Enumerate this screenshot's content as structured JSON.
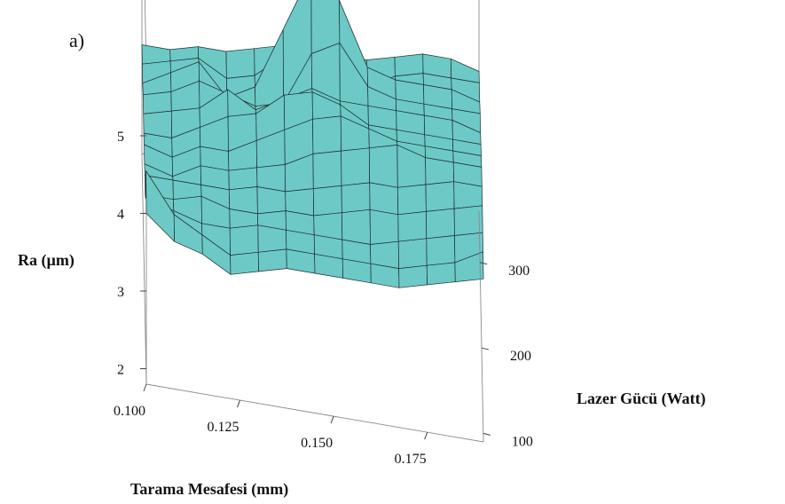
{
  "chart_data": {
    "type": "surface",
    "panel_label": "a)",
    "xlabel": "Tarama Mesafesi (mm)",
    "ylabel": "Lazer Gücü (Watt)",
    "zlabel": "Ra (µm)",
    "x_ticks": [
      "0.100",
      "0.125",
      "0.150",
      "0.175"
    ],
    "y_ticks": [
      "100",
      "200",
      "300"
    ],
    "z_ticks": [
      "2",
      "3",
      "4",
      "5"
    ],
    "x_range": [
      0.1,
      0.19
    ],
    "y_range": [
      90,
      360
    ],
    "z_range": [
      1.8,
      5.8
    ],
    "x": [
      0.1,
      0.1075,
      0.115,
      0.1225,
      0.13,
      0.1375,
      0.145,
      0.1525,
      0.16,
      0.1675,
      0.175,
      0.1825,
      0.19
    ],
    "y": [
      90,
      112.5,
      135,
      157.5,
      180,
      202.5,
      225,
      247.5,
      270,
      292.5,
      315,
      337.5,
      360
    ],
    "z": [
      [
        4.0,
        3.7,
        3.6,
        3.4,
        3.5,
        3.6,
        3.6,
        3.6,
        3.6,
        3.6,
        3.7,
        3.8,
        3.9
      ],
      [
        4.3,
        3.8,
        3.6,
        3.4,
        3.5,
        3.6,
        3.6,
        3.6,
        3.6,
        3.6,
        3.7,
        3.8,
        4.0
      ],
      [
        3.7,
        3.6,
        3.5,
        3.5,
        3.6,
        3.6,
        3.6,
        3.6,
        3.6,
        3.7,
        3.8,
        3.9,
        4.0
      ],
      [
        3.5,
        3.5,
        3.6,
        3.5,
        3.5,
        3.6,
        3.6,
        3.7,
        3.8,
        3.8,
        3.9,
        4.0,
        4.1
      ],
      [
        3.5,
        3.5,
        3.5,
        3.5,
        3.6,
        3.6,
        3.7,
        3.8,
        3.9,
        3.9,
        4.0,
        4.1,
        4.1
      ],
      [
        3.4,
        3.3,
        3.5,
        3.5,
        3.6,
        3.7,
        3.9,
        4.0,
        4.1,
        4.2,
        4.1,
        4.1,
        4.1
      ],
      [
        3.4,
        3.3,
        3.5,
        3.5,
        3.7,
        3.9,
        4.1,
        4.2,
        4.1,
        4.0,
        4.0,
        4.0,
        4.0
      ],
      [
        3.3,
        3.3,
        3.5,
        3.7,
        3.8,
        4.1,
        4.2,
        4.1,
        3.9,
        3.9,
        3.9,
        3.9,
        3.9
      ],
      [
        3.3,
        3.4,
        3.5,
        3.8,
        3.6,
        3.8,
        4.0,
        3.9,
        3.9,
        3.9,
        3.9,
        3.9,
        3.8
      ],
      [
        3.3,
        3.4,
        3.6,
        3.5,
        3.4,
        3.5,
        4.2,
        4.4,
        3.9,
        3.8,
        3.8,
        3.8,
        3.8
      ],
      [
        3.2,
        3.4,
        3.6,
        3.2,
        3.4,
        4.2,
        5.0,
        4.7,
        3.9,
        3.8,
        3.8,
        3.8,
        3.7
      ],
      [
        3.2,
        3.3,
        3.4,
        3.2,
        3.3,
        3.6,
        3.6,
        3.4,
        3.4,
        3.6,
        3.7,
        3.7,
        3.7
      ],
      [
        3.2,
        3.2,
        3.3,
        3.3,
        3.4,
        3.5,
        3.5,
        3.5,
        3.5,
        3.6,
        3.7,
        3.7,
        3.6
      ]
    ],
    "grid": false,
    "colors": {
      "surface": "#6cc9c6",
      "mesh": "#1f2f30",
      "box": "#8a8a8a"
    }
  }
}
